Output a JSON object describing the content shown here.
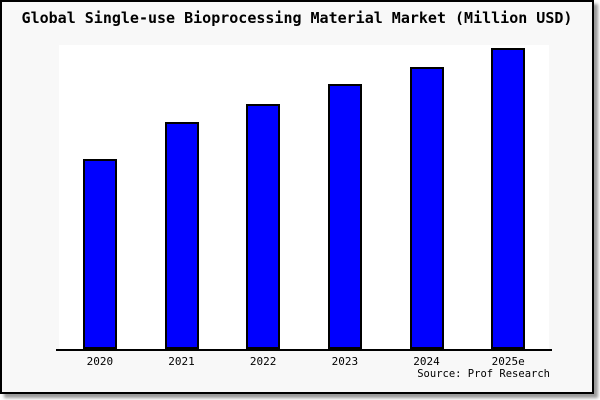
{
  "chart_data": {
    "type": "bar",
    "title": "Global Single-use Bioprocessing Material Market (Million USD)",
    "categories": [
      "2020",
      "2021",
      "2022",
      "2023",
      "2024",
      "2025e"
    ],
    "values": [
      62.5,
      74.6,
      80.7,
      87.1,
      92.7,
      98.9
    ],
    "value_note": "No y-axis, gridlines or data labels are shown in the image; values are bar heights estimated as percent of plot-area height",
    "xlabel": "",
    "ylabel": "",
    "ylim": [
      0,
      100
    ],
    "grid": false,
    "legend": false,
    "bar_color": "#0000ff",
    "bar_border_color": "#000000"
  },
  "footer": {
    "source": "Source: Prof Research"
  },
  "colors": {
    "background": "#f8f8f8",
    "plot_background": "#ffffff",
    "frame_border": "#000000",
    "shadow": "#9a9a9a",
    "text": "#000000"
  }
}
